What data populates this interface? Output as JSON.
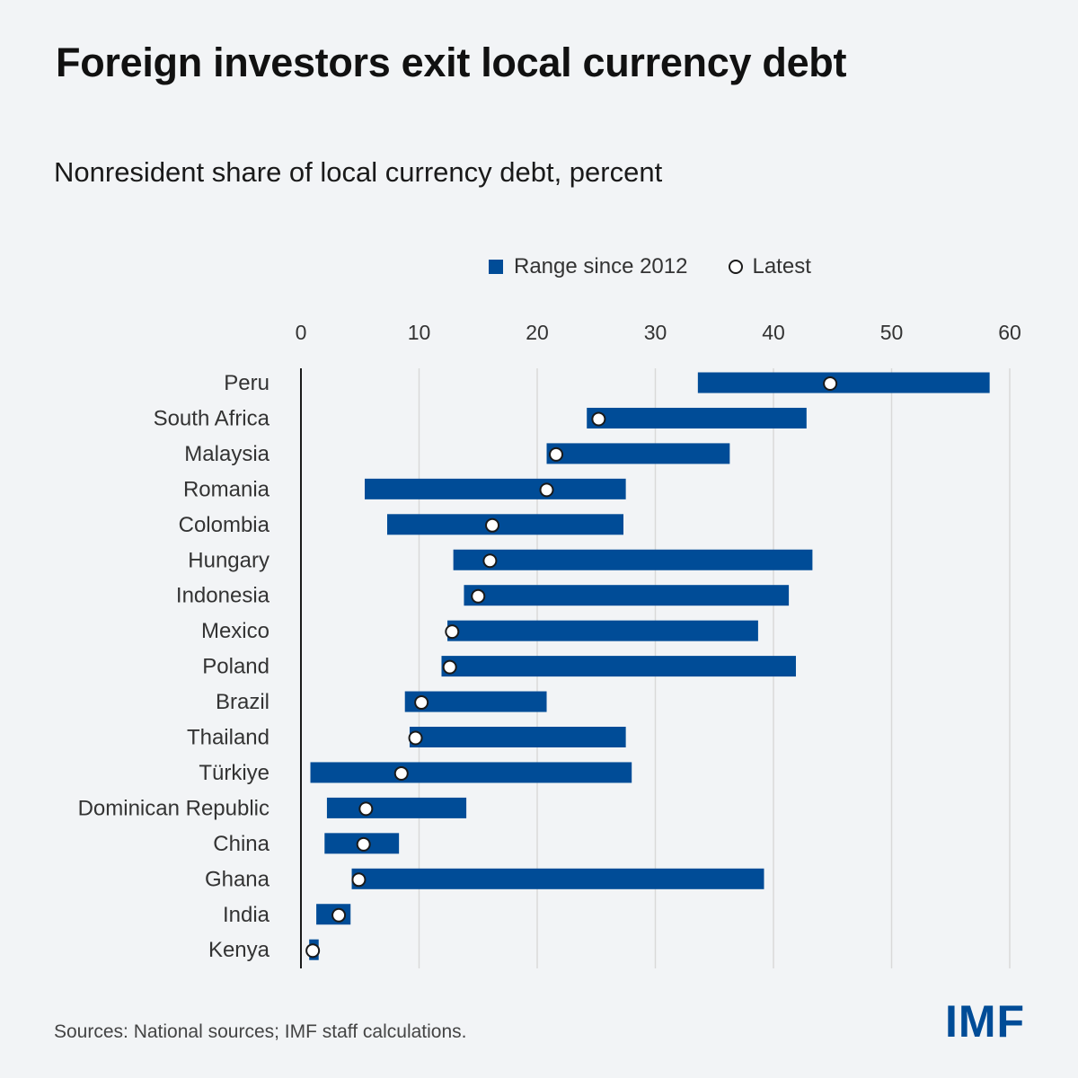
{
  "title": "Foreign investors exit local currency debt",
  "subtitle": "Nonresident share of local currency debt, percent",
  "legend": {
    "range_label": "Range since 2012",
    "latest_label": "Latest"
  },
  "source": "Sources: National sources; IMF staff calculations.",
  "logo": "IMF",
  "colors": {
    "bar": "#004c97",
    "grid": "#d9d9d9",
    "marker_fill": "#ffffff",
    "marker_stroke": "#1a1a1a"
  },
  "chart_data": {
    "type": "range_dot",
    "title": "Foreign investors exit local currency debt",
    "subtitle": "Nonresident share of local currency debt, percent",
    "xlim": [
      0,
      60
    ],
    "xticks": [
      0,
      10,
      20,
      30,
      40,
      50,
      60
    ],
    "grid": true,
    "legend_position": "top",
    "categories": [
      "Peru",
      "South Africa",
      "Malaysia",
      "Romania",
      "Colombia",
      "Hungary",
      "Indonesia",
      "Mexico",
      "Poland",
      "Brazil",
      "Thailand",
      "Türkiye",
      "Dominican Republic",
      "China",
      "Ghana",
      "India",
      "Kenya"
    ],
    "series": [
      {
        "name": "Range since 2012",
        "type": "range",
        "min": [
          33.6,
          24.2,
          20.8,
          5.4,
          7.3,
          12.9,
          13.8,
          12.4,
          11.9,
          8.8,
          9.2,
          0.8,
          2.2,
          2.0,
          4.3,
          1.3,
          0.7
        ],
        "max": [
          58.3,
          42.8,
          36.3,
          27.5,
          27.3,
          43.3,
          41.3,
          38.7,
          41.9,
          20.8,
          27.5,
          28.0,
          14.0,
          8.3,
          39.2,
          4.2,
          1.5
        ]
      },
      {
        "name": "Latest",
        "type": "point",
        "values": [
          44.8,
          25.2,
          21.6,
          20.8,
          16.2,
          16.0,
          15.0,
          12.8,
          12.6,
          10.2,
          9.7,
          8.5,
          5.5,
          5.3,
          4.9,
          3.2,
          1.0
        ]
      }
    ]
  }
}
